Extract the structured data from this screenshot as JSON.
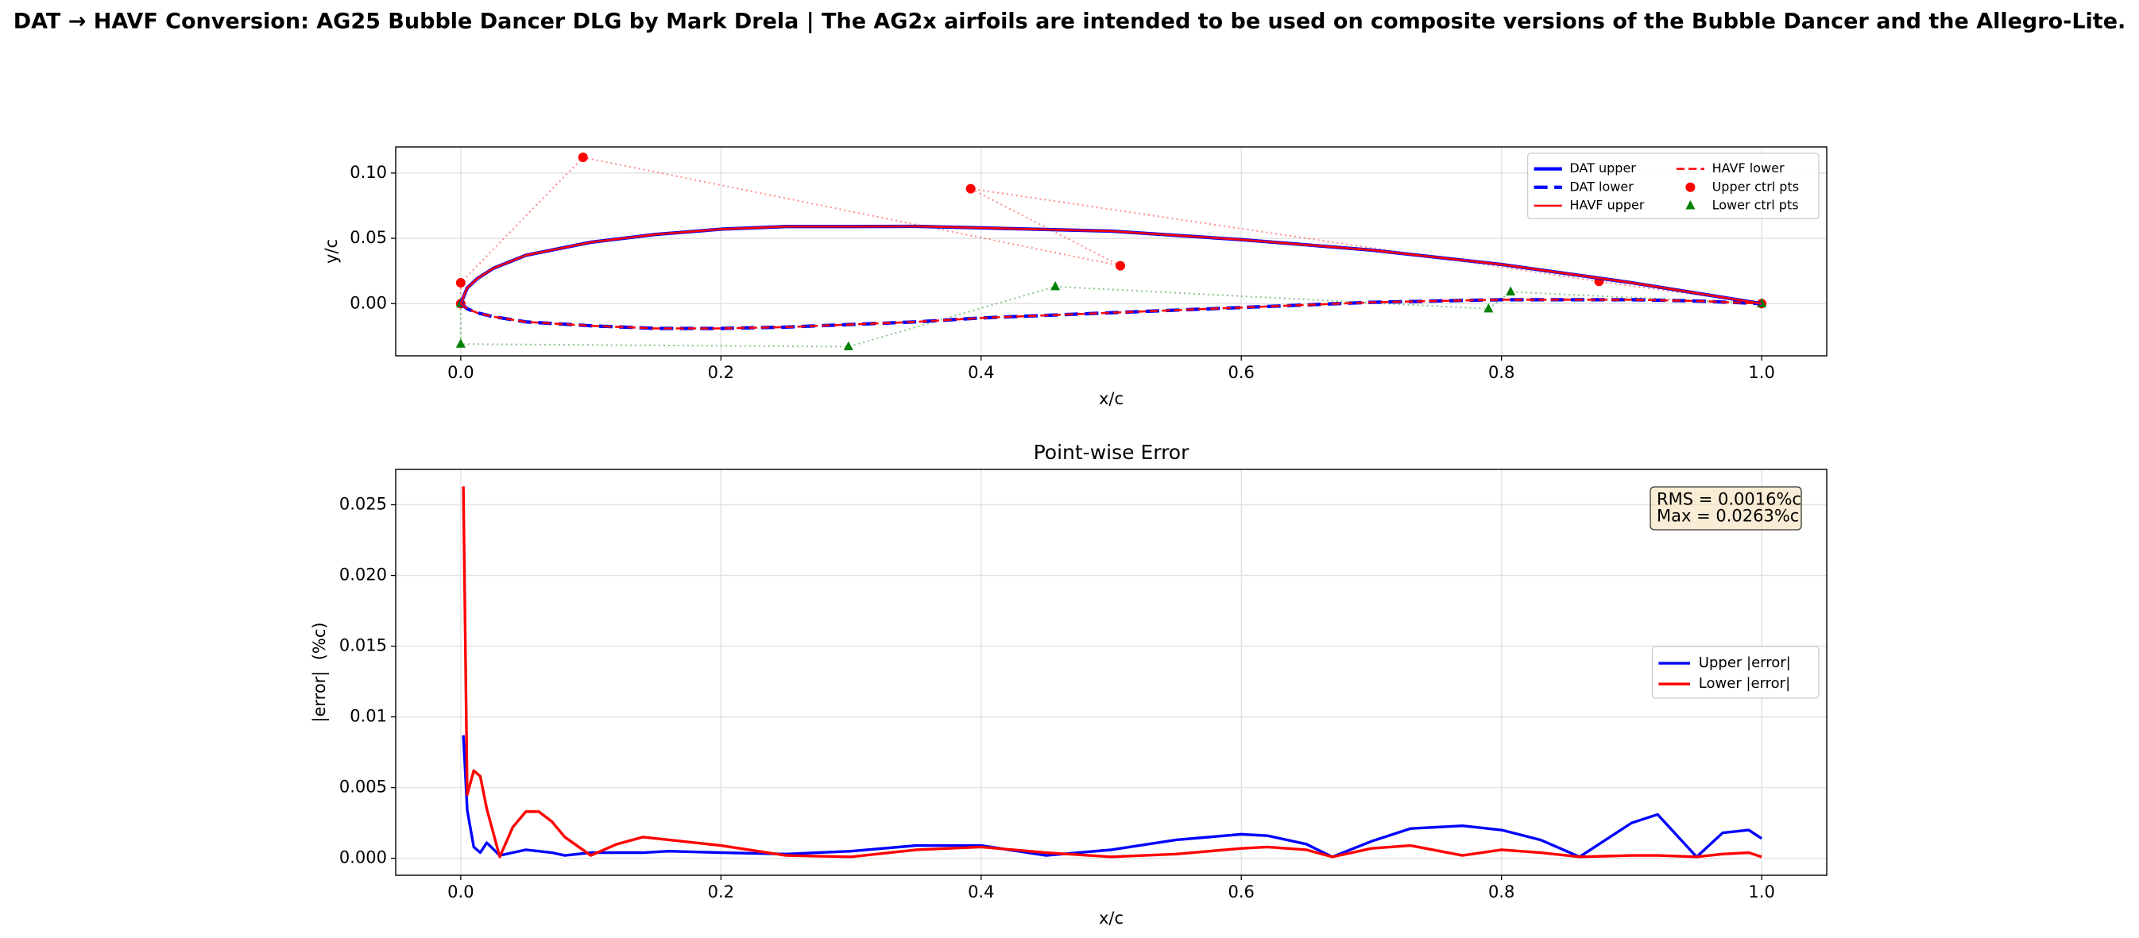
{
  "title": "DAT → HAVF Conversion: AG25 Bubble Dancer DLG by Mark Drela | The AG2x airfoils are intended to be used on composite versions of the Bubble Dancer and the Allegro-Lite.",
  "chart_data": [
    {
      "type": "line",
      "xlabel": "x/c",
      "ylabel": "y/c",
      "xlim": [
        -0.05,
        1.05
      ],
      "ylim": [
        -0.04,
        0.12
      ],
      "xticks": [
        {
          "value": 0,
          "label": "0.0"
        },
        {
          "value": 0.2,
          "label": "0.2"
        },
        {
          "value": 0.4,
          "label": "0.4"
        },
        {
          "value": 0.6,
          "label": "0.6"
        },
        {
          "value": 0.8,
          "label": "0.8"
        },
        {
          "value": 1,
          "label": "1.0"
        }
      ],
      "yticks": [
        {
          "value": 0,
          "label": "0.00"
        },
        {
          "value": 0.05,
          "label": "0.05"
        },
        {
          "value": 0.1,
          "label": "0.10"
        }
      ],
      "grid": true,
      "legend": "upper right",
      "legend_ncol": 2,
      "series": [
        {
          "name": "DAT upper",
          "color": "#0000ff",
          "linestyle": "solid",
          "linewidth": 2.5,
          "x": [
            0,
            0.005,
            0.0125,
            0.025,
            0.05,
            0.1,
            0.15,
            0.2,
            0.25,
            0.3,
            0.35,
            0.4,
            0.5,
            0.6,
            0.7,
            0.8,
            0.9,
            0.95,
            1
          ],
          "values": [
            0,
            0.012,
            0.019,
            0.027,
            0.037,
            0.047,
            0.053,
            0.057,
            0.059,
            0.059,
            0.0592,
            0.058,
            0.0555,
            0.049,
            0.041,
            0.03,
            0.016,
            0.008,
            0
          ]
        },
        {
          "name": "DAT lower",
          "color": "#0000ff",
          "linestyle": "dashed",
          "linewidth": 2.5,
          "x": [
            0,
            0.005,
            0.0125,
            0.025,
            0.05,
            0.1,
            0.15,
            0.2,
            0.25,
            0.3,
            0.35,
            0.4,
            0.5,
            0.6,
            0.7,
            0.8,
            0.9,
            0.95,
            1
          ],
          "values": [
            0,
            -0.004,
            -0.007,
            -0.01,
            -0.014,
            -0.017,
            -0.019,
            -0.019,
            -0.018,
            -0.016,
            -0.014,
            -0.011,
            -0.007,
            -0.003,
            0.001,
            0.003,
            0.003,
            0.002,
            0
          ]
        },
        {
          "name": "HAVF upper",
          "color": "#ff0000",
          "linestyle": "solid",
          "linewidth": 1.5,
          "x": [
            0,
            0.005,
            0.0125,
            0.025,
            0.05,
            0.1,
            0.15,
            0.2,
            0.25,
            0.3,
            0.35,
            0.4,
            0.5,
            0.6,
            0.7,
            0.8,
            0.9,
            0.95,
            1
          ],
          "values": [
            0,
            0.012,
            0.019,
            0.027,
            0.037,
            0.047,
            0.053,
            0.057,
            0.059,
            0.059,
            0.0592,
            0.058,
            0.0555,
            0.049,
            0.041,
            0.03,
            0.016,
            0.008,
            0
          ]
        },
        {
          "name": "HAVF lower",
          "color": "#ff0000",
          "linestyle": "dashed",
          "linewidth": 1.5,
          "x": [
            0,
            0.005,
            0.0125,
            0.025,
            0.05,
            0.1,
            0.15,
            0.2,
            0.25,
            0.3,
            0.35,
            0.4,
            0.5,
            0.6,
            0.7,
            0.8,
            0.9,
            0.95,
            1
          ],
          "values": [
            0,
            -0.004,
            -0.007,
            -0.01,
            -0.014,
            -0.017,
            -0.019,
            -0.019,
            -0.018,
            -0.016,
            -0.014,
            -0.011,
            -0.007,
            -0.003,
            0.001,
            0.003,
            0.003,
            0.002,
            0
          ]
        },
        {
          "name": "Upper ctrl pts",
          "color": "#ff0000",
          "linestyle": "dotted",
          "linewidth": 1.2,
          "alpha": 0.45,
          "marker": "o",
          "x": [
            0,
            0,
            0.094,
            0.507,
            0.392,
            0.875,
            1
          ],
          "values": [
            0,
            0.016,
            0.112,
            0.029,
            0.088,
            0.017,
            0
          ]
        },
        {
          "name": "Lower ctrl pts",
          "color": "#008000",
          "linestyle": "dotted",
          "linewidth": 1.2,
          "alpha": 0.45,
          "marker": "^",
          "x": [
            0,
            0,
            0.298,
            0.457,
            0.79,
            0.807,
            1
          ],
          "values": [
            0,
            -0.031,
            -0.033,
            0.013,
            -0.004,
            0.009,
            0
          ]
        }
      ]
    },
    {
      "type": "line",
      "title": "Point-wise Error",
      "xlabel": "x/c",
      "ylabel": "|error|  (%c)",
      "xlim": [
        -0.05,
        1.05
      ],
      "ylim": [
        -0.0012,
        0.0275
      ],
      "xticks": [
        {
          "value": 0,
          "label": "0.0"
        },
        {
          "value": 0.2,
          "label": "0.2"
        },
        {
          "value": 0.4,
          "label": "0.4"
        },
        {
          "value": 0.6,
          "label": "0.6"
        },
        {
          "value": 0.8,
          "label": "0.8"
        },
        {
          "value": 1,
          "label": "1.0"
        }
      ],
      "yticks": [
        {
          "value": 0,
          "label": "0.000"
        },
        {
          "value": 0.005,
          "label": "0.005"
        },
        0.01,
        0.015,
        {
          "value": 0.02,
          "label": "0.020"
        },
        0.025
      ],
      "grid": true,
      "legend": "center right",
      "legend_ncol": 1,
      "annotation": [
        "RMS = 0.0016%c",
        "Max = 0.0263%c"
      ],
      "series": [
        {
          "name": "Upper |error|",
          "color": "#0000ff",
          "linestyle": "solid",
          "linewidth": 2,
          "x": [
            0.002,
            0.005,
            0.01,
            0.015,
            0.02,
            0.03,
            0.04,
            0.05,
            0.06,
            0.07,
            0.08,
            0.1,
            0.12,
            0.14,
            0.16,
            0.2,
            0.25,
            0.3,
            0.35,
            0.4,
            0.45,
            0.5,
            0.55,
            0.6,
            0.62,
            0.65,
            0.67,
            0.7,
            0.73,
            0.77,
            0.8,
            0.83,
            0.86,
            0.9,
            0.92,
            0.95,
            0.97,
            0.99,
            1.0
          ],
          "values": [
            0.0087,
            0.0034,
            0.0008,
            0.0004,
            0.0011,
            0.0002,
            0.0004,
            0.0006,
            0.0005,
            0.0004,
            0.0002,
            0.0004,
            0.0004,
            0.0004,
            0.0005,
            0.0004,
            0.0003,
            0.0005,
            0.0009,
            0.0009,
            0.0002,
            0.0006,
            0.0013,
            0.0017,
            0.0016,
            0.001,
            0.0001,
            0.0012,
            0.0021,
            0.0023,
            0.002,
            0.0013,
            0.0001,
            0.0025,
            0.0031,
            0.0001,
            0.0018,
            0.002,
            0.0014
          ]
        },
        {
          "name": "Lower |error|",
          "color": "#ff0000",
          "linestyle": "solid",
          "linewidth": 2,
          "x": [
            0.002,
            0.005,
            0.01,
            0.015,
            0.02,
            0.03,
            0.04,
            0.05,
            0.06,
            0.07,
            0.08,
            0.1,
            0.12,
            0.14,
            0.16,
            0.2,
            0.25,
            0.3,
            0.35,
            0.4,
            0.45,
            0.5,
            0.55,
            0.6,
            0.62,
            0.65,
            0.67,
            0.7,
            0.73,
            0.77,
            0.8,
            0.83,
            0.86,
            0.9,
            0.92,
            0.95,
            0.97,
            0.99,
            1.0
          ],
          "values": [
            0.0263,
            0.0045,
            0.0062,
            0.0058,
            0.0035,
            0.0001,
            0.0022,
            0.0033,
            0.0033,
            0.0026,
            0.0015,
            0.0002,
            0.001,
            0.0015,
            0.0013,
            0.0009,
            0.0002,
            0.0001,
            0.0006,
            0.0008,
            0.0004,
            0.0001,
            0.0003,
            0.0007,
            0.0008,
            0.0006,
            0.0001,
            0.0007,
            0.0009,
            0.0002,
            0.0006,
            0.0004,
            0.0001,
            0.0002,
            0.0002,
            0.0001,
            0.0003,
            0.0004,
            0.0001
          ]
        }
      ]
    }
  ]
}
